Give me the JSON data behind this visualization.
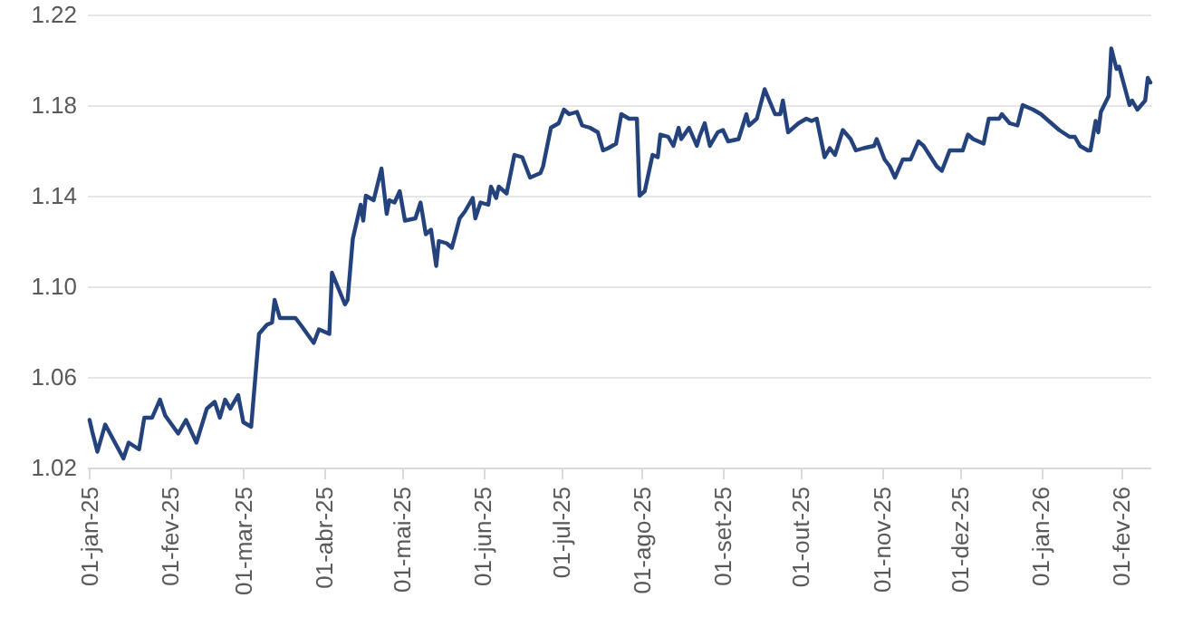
{
  "chart_data": {
    "type": "line",
    "x": [
      "2025-01-01",
      "2025-01-02",
      "2025-01-04",
      "2025-01-07",
      "2025-01-14",
      "2025-01-16",
      "2025-01-20",
      "2025-01-22",
      "2025-01-25",
      "2025-01-28",
      "2025-01-30",
      "2025-02-04",
      "2025-02-07",
      "2025-02-11",
      "2025-02-15",
      "2025-02-18",
      "2025-02-20",
      "2025-02-22",
      "2025-02-24",
      "2025-02-27",
      "2025-03-01",
      "2025-03-04",
      "2025-03-07",
      "2025-03-10",
      "2025-03-12",
      "2025-03-13",
      "2025-03-15",
      "2025-03-21",
      "2025-03-23",
      "2025-03-28",
      "2025-03-30",
      "2025-04-03",
      "2025-04-04",
      "2025-04-09",
      "2025-04-10",
      "2025-04-12",
      "2025-04-15",
      "2025-04-16",
      "2025-04-17",
      "2025-04-20",
      "2025-04-23",
      "2025-04-25",
      "2025-04-26",
      "2025-04-28",
      "2025-04-30",
      "2025-05-02",
      "2025-05-06",
      "2025-05-08",
      "2025-05-10",
      "2025-05-12",
      "2025-05-14",
      "2025-05-15",
      "2025-05-18",
      "2025-05-20",
      "2025-05-23",
      "2025-05-25",
      "2025-05-28",
      "2025-05-29",
      "2025-05-31",
      "2025-06-03",
      "2025-06-04",
      "2025-06-06",
      "2025-06-07",
      "2025-06-10",
      "2025-06-13",
      "2025-06-16",
      "2025-06-19",
      "2025-06-23",
      "2025-06-24",
      "2025-06-27",
      "2025-06-30",
      "2025-07-02",
      "2025-07-04",
      "2025-07-07",
      "2025-07-09",
      "2025-07-12",
      "2025-07-15",
      "2025-07-17",
      "2025-07-19",
      "2025-07-22",
      "2025-07-24",
      "2025-07-27",
      "2025-07-30",
      "2025-07-31",
      "2025-08-02",
      "2025-08-05",
      "2025-08-07",
      "2025-08-08",
      "2025-08-11",
      "2025-08-13",
      "2025-08-15",
      "2025-08-16",
      "2025-08-19",
      "2025-08-22",
      "2025-08-23",
      "2025-08-25",
      "2025-08-27",
      "2025-08-30",
      "2025-09-01",
      "2025-09-03",
      "2025-09-07",
      "2025-09-10",
      "2025-09-11",
      "2025-09-14",
      "2025-09-17",
      "2025-09-21",
      "2025-09-23",
      "2025-09-24",
      "2025-09-26",
      "2025-09-30",
      "2025-10-03",
      "2025-10-05",
      "2025-10-07",
      "2025-10-10",
      "2025-10-12",
      "2025-10-14",
      "2025-10-17",
      "2025-10-20",
      "2025-10-22",
      "2025-10-25",
      "2025-10-29",
      "2025-10-30",
      "2025-11-02",
      "2025-11-04",
      "2025-11-06",
      "2025-11-09",
      "2025-11-12",
      "2025-11-15",
      "2025-11-17",
      "2025-11-22",
      "2025-11-24",
      "2025-11-27",
      "2025-12-02",
      "2025-12-04",
      "2025-12-06",
      "2025-12-10",
      "2025-12-12",
      "2025-12-16",
      "2025-12-17",
      "2025-12-20",
      "2025-12-23",
      "2025-12-25",
      "2025-12-29",
      "2026-01-01",
      "2026-01-03",
      "2026-01-08",
      "2026-01-12",
      "2026-01-14",
      "2026-01-16",
      "2026-01-19",
      "2026-01-20",
      "2026-01-22",
      "2026-01-23",
      "2026-01-24",
      "2026-01-27",
      "2026-01-28",
      "2026-01-30",
      "2026-01-31",
      "2026-02-04",
      "2026-02-05",
      "2026-02-07",
      "2026-02-10",
      "2026-02-11",
      "2026-02-12"
    ],
    "series": [
      {
        "color": "#24427c",
        "values": [
          1.041,
          1.036,
          1.027,
          1.039,
          1.024,
          1.031,
          1.028,
          1.042,
          1.042,
          1.05,
          1.043,
          1.035,
          1.041,
          1.031,
          1.046,
          1.049,
          1.042,
          1.05,
          1.046,
          1.052,
          1.04,
          1.038,
          1.079,
          1.083,
          1.084,
          1.094,
          1.086,
          1.086,
          1.083,
          1.075,
          1.081,
          1.079,
          1.106,
          1.092,
          1.094,
          1.121,
          1.136,
          1.129,
          1.14,
          1.138,
          1.152,
          1.132,
          1.138,
          1.137,
          1.142,
          1.129,
          1.13,
          1.137,
          1.123,
          1.125,
          1.109,
          1.12,
          1.119,
          1.117,
          1.13,
          1.133,
          1.139,
          1.13,
          1.137,
          1.136,
          1.144,
          1.139,
          1.144,
          1.141,
          1.158,
          1.157,
          1.148,
          1.15,
          1.153,
          1.17,
          1.172,
          1.178,
          1.176,
          1.177,
          1.171,
          1.17,
          1.168,
          1.16,
          1.161,
          1.163,
          1.176,
          1.174,
          1.174,
          1.14,
          1.142,
          1.158,
          1.157,
          1.167,
          1.166,
          1.162,
          1.17,
          1.165,
          1.17,
          1.162,
          1.166,
          1.172,
          1.162,
          1.168,
          1.169,
          1.164,
          1.165,
          1.176,
          1.171,
          1.174,
          1.187,
          1.176,
          1.176,
          1.182,
          1.168,
          1.172,
          1.174,
          1.173,
          1.174,
          1.157,
          1.161,
          1.158,
          1.169,
          1.165,
          1.16,
          1.161,
          1.162,
          1.165,
          1.156,
          1.153,
          1.148,
          1.156,
          1.156,
          1.164,
          1.162,
          1.153,
          1.151,
          1.16,
          1.16,
          1.167,
          1.165,
          1.163,
          1.174,
          1.174,
          1.176,
          1.172,
          1.171,
          1.18,
          1.178,
          1.176,
          1.174,
          1.169,
          1.166,
          1.166,
          1.162,
          1.16,
          1.16,
          1.173,
          1.168,
          1.177,
          1.184,
          1.205,
          1.196,
          1.197,
          1.18,
          1.182,
          1.178,
          1.182,
          1.192,
          1.19
        ]
      }
    ],
    "xlim": [
      "2024-12-31",
      "2026-02-12"
    ],
    "xticks": [
      {
        "value": "2025-01-01",
        "label": "01-jan-25"
      },
      {
        "value": "2025-02-01",
        "label": "01-fev-25"
      },
      {
        "value": "2025-03-01",
        "label": "01-mar-25"
      },
      {
        "value": "2025-04-01",
        "label": "01-abr-25"
      },
      {
        "value": "2025-05-01",
        "label": "01-mai-25"
      },
      {
        "value": "2025-06-01",
        "label": "01-jun-25"
      },
      {
        "value": "2025-07-01",
        "label": "01-jul-25"
      },
      {
        "value": "2025-08-01",
        "label": "01-ago-25"
      },
      {
        "value": "2025-09-01",
        "label": "01-set-25"
      },
      {
        "value": "2025-10-01",
        "label": "01-out-25"
      },
      {
        "value": "2025-11-01",
        "label": "01-nov-25"
      },
      {
        "value": "2025-12-01",
        "label": "01-dez-25"
      },
      {
        "value": "2026-01-01",
        "label": "01-jan-26"
      },
      {
        "value": "2026-02-01",
        "label": "01-fev-26"
      }
    ],
    "ylim": [
      1.02,
      1.22
    ],
    "yticks": [
      1.02,
      1.06,
      {
        "value": 1.1,
        "label": "1.10"
      },
      1.14,
      1.18,
      1.22
    ],
    "grid": "y",
    "marker": "none",
    "line_style": "solid"
  }
}
